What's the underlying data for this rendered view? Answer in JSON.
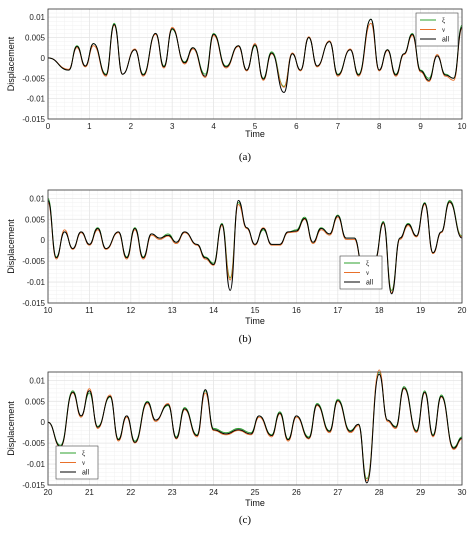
{
  "colors": {
    "xi": "#2ca02c",
    "nu": "#e8702a",
    "all": "#000000",
    "grid": "#e6e6e6",
    "axis": "#333333"
  },
  "chart_data": [
    {
      "type": "line",
      "caption_letter": "a",
      "caption": "(a)",
      "xlabel": "Time",
      "ylabel": "Displacement",
      "xlim": [
        0,
        10
      ],
      "ylim": [
        -0.015,
        0.012
      ],
      "xticks": [
        "0",
        "1",
        "2",
        "3",
        "4",
        "5",
        "6",
        "7",
        "8",
        "9",
        "10"
      ],
      "yticks": [
        "0.01",
        "0.005",
        "0",
        "-0.005",
        "-0.01",
        "-0.015"
      ],
      "legend_position": "top-right",
      "grid": true,
      "series": [
        {
          "name": "ξ",
          "color": "#2ca02c",
          "x": [
            0,
            0.5,
            0.7,
            0.9,
            1.1,
            1.4,
            1.6,
            1.8,
            2.1,
            2.3,
            2.6,
            2.8,
            3.0,
            3.3,
            3.5,
            3.8,
            4.0,
            4.3,
            4.6,
            4.8,
            5.0,
            5.2,
            5.4,
            5.7,
            5.9,
            6.1,
            6.3,
            6.5,
            6.8,
            7.0,
            7.3,
            7.5,
            7.8,
            8.0,
            8.2,
            8.4,
            8.6,
            8.8,
            9.0,
            9.2,
            9.4,
            9.6,
            9.8,
            10
          ],
          "y": [
            0,
            -0.003,
            0.003,
            -0.002,
            0.0035,
            -0.004,
            0.0085,
            -0.004,
            0.002,
            -0.004,
            0.006,
            -0.002,
            0.007,
            -0.001,
            0.0025,
            -0.004,
            0.006,
            -0.002,
            0.003,
            -0.003,
            0.003,
            -0.005,
            0.0015,
            -0.007,
            0.001,
            -0.003,
            0.005,
            -0.002,
            0.004,
            -0.004,
            0.002,
            -0.004,
            0.0095,
            -0.003,
            0.002,
            -0.004,
            0.001,
            0.006,
            -0.003,
            -0.005,
            0.0005,
            -0.004,
            -0.005,
            0.008
          ]
        },
        {
          "name": "ν",
          "color": "#e8702a",
          "x": [
            0,
            0.5,
            0.7,
            0.9,
            1.1,
            1.4,
            1.6,
            1.8,
            2.1,
            2.3,
            2.6,
            2.8,
            3.0,
            3.3,
            3.5,
            3.8,
            4.0,
            4.3,
            4.6,
            4.8,
            5.0,
            5.2,
            5.4,
            5.7,
            5.9,
            6.1,
            6.3,
            6.5,
            6.8,
            7.0,
            7.3,
            7.5,
            7.8,
            8.0,
            8.2,
            8.4,
            8.6,
            8.8,
            9.0,
            9.2,
            9.4,
            9.6,
            9.8,
            10
          ],
          "y": [
            0,
            -0.0028,
            0.0025,
            -0.0022,
            0.003,
            -0.0045,
            0.008,
            -0.004,
            0.0022,
            -0.0045,
            0.0058,
            -0.0025,
            0.0075,
            -0.0015,
            0.0022,
            -0.0048,
            0.0055,
            -0.0025,
            0.0028,
            -0.0032,
            0.0035,
            -0.0055,
            0.001,
            -0.0072,
            0.0012,
            -0.0032,
            0.0052,
            -0.0022,
            0.0042,
            -0.0045,
            0.0022,
            -0.0045,
            0.0085,
            -0.0032,
            0.0018,
            -0.0045,
            0.0008,
            0.0055,
            -0.0035,
            -0.0058,
            0.0008,
            -0.0045,
            -0.0055,
            0.0072
          ]
        },
        {
          "name": "all",
          "color": "#000000",
          "x": [
            0,
            0.5,
            0.7,
            0.9,
            1.1,
            1.4,
            1.6,
            1.8,
            2.1,
            2.3,
            2.6,
            2.8,
            3.0,
            3.3,
            3.5,
            3.8,
            4.0,
            4.3,
            4.6,
            4.8,
            5.0,
            5.2,
            5.4,
            5.7,
            5.9,
            6.1,
            6.3,
            6.5,
            6.8,
            7.0,
            7.3,
            7.5,
            7.8,
            8.0,
            8.2,
            8.4,
            8.6,
            8.8,
            9.0,
            9.2,
            9.4,
            9.6,
            9.8,
            10
          ],
          "y": [
            0,
            -0.003,
            0.0028,
            -0.002,
            0.0035,
            -0.0042,
            0.0082,
            -0.004,
            0.002,
            -0.0042,
            0.006,
            -0.0022,
            0.0072,
            -0.0012,
            0.0025,
            -0.0045,
            0.0058,
            -0.0022,
            0.003,
            -0.003,
            0.0032,
            -0.0052,
            0.0012,
            -0.0085,
            0.001,
            -0.003,
            0.005,
            -0.002,
            0.004,
            -0.0042,
            0.002,
            -0.0042,
            0.0095,
            -0.003,
            0.002,
            -0.0042,
            0.001,
            0.0058,
            -0.0032,
            -0.0055,
            0.0005,
            -0.0042,
            -0.005,
            0.0075
          ]
        }
      ]
    },
    {
      "type": "line",
      "caption_letter": "b",
      "caption": "(b)",
      "xlabel": "Time",
      "ylabel": "Displacement",
      "xlim": [
        10,
        20
      ],
      "ylim": [
        -0.015,
        0.012
      ],
      "xticks": [
        "10",
        "11",
        "12",
        "13",
        "14",
        "15",
        "16",
        "17",
        "18",
        "19",
        "20"
      ],
      "yticks": [
        "0.01",
        "0.005",
        "0",
        "-0.005",
        "-0.01",
        "-0.015"
      ],
      "legend_position": "lower-right",
      "grid": true,
      "series": [
        {
          "name": "ξ",
          "color": "#2ca02c",
          "x": [
            10,
            10.2,
            10.4,
            10.6,
            10.8,
            11.0,
            11.2,
            11.4,
            11.7,
            11.9,
            12.1,
            12.3,
            12.5,
            12.7,
            12.9,
            13.1,
            13.3,
            13.6,
            13.8,
            14.0,
            14.2,
            14.4,
            14.6,
            14.8,
            15.0,
            15.2,
            15.4,
            15.6,
            15.8,
            16.0,
            16.2,
            16.4,
            16.6,
            16.8,
            17.0,
            17.2,
            17.4,
            17.6,
            17.9,
            18.1,
            18.3,
            18.5,
            18.7,
            18.9,
            19.1,
            19.3,
            19.5,
            19.7,
            20
          ],
          "y": [
            0.01,
            -0.004,
            0.002,
            -0.002,
            0.002,
            -0.001,
            0.003,
            -0.002,
            0.002,
            -0.004,
            0.003,
            -0.004,
            0.0015,
            0.0005,
            0.0015,
            -0.0005,
            0.002,
            -0.001,
            -0.004,
            -0.0055,
            0.004,
            -0.009,
            0.009,
            0.003,
            -0.001,
            0.0025,
            -0.001,
            -0.001,
            0.002,
            0.0025,
            0.0055,
            -0.0005,
            0.003,
            0.0015,
            0.006,
            0.0005,
            0.0005,
            -0.006,
            -0.0045,
            0.0045,
            -0.012,
            0.0005,
            0.004,
            0.001,
            0.009,
            -0.003,
            0.002,
            0.0095,
            0.001
          ]
        },
        {
          "name": "ν",
          "color": "#e8702a",
          "x": [
            10,
            10.2,
            10.4,
            10.6,
            10.8,
            11.0,
            11.2,
            11.4,
            11.7,
            11.9,
            12.1,
            12.3,
            12.5,
            12.7,
            12.9,
            13.1,
            13.3,
            13.6,
            13.8,
            14.0,
            14.2,
            14.4,
            14.6,
            14.8,
            15.0,
            15.2,
            15.4,
            15.6,
            15.8,
            16.0,
            16.2,
            16.4,
            16.6,
            16.8,
            17.0,
            17.2,
            17.4,
            17.6,
            17.9,
            18.1,
            18.3,
            18.5,
            18.7,
            18.9,
            19.1,
            19.3,
            19.5,
            19.7,
            20
          ],
          "y": [
            0.009,
            -0.0045,
            0.0025,
            -0.0022,
            0.0018,
            -0.0012,
            0.0025,
            -0.0022,
            0.0018,
            -0.0045,
            0.0025,
            -0.0045,
            0.0012,
            0.0002,
            0.001,
            -0.0008,
            0.0018,
            -0.0012,
            -0.0045,
            -0.006,
            0.0035,
            -0.0095,
            0.0085,
            0.0028,
            -0.0012,
            0.003,
            -0.0012,
            -0.0012,
            0.0018,
            0.002,
            0.005,
            -0.0008,
            0.0025,
            0.0012,
            0.0055,
            0.0002,
            0.0002,
            -0.0062,
            -0.0048,
            0.004,
            -0.0125,
            0.0002,
            0.0035,
            0.0008,
            0.0085,
            -0.0032,
            0.0018,
            0.009,
            0.0008
          ]
        },
        {
          "name": "all",
          "color": "#000000",
          "x": [
            10,
            10.2,
            10.4,
            10.6,
            10.8,
            11.0,
            11.2,
            11.4,
            11.7,
            11.9,
            12.1,
            12.3,
            12.5,
            12.7,
            12.9,
            13.1,
            13.3,
            13.6,
            13.8,
            14.0,
            14.2,
            14.4,
            14.6,
            14.8,
            15.0,
            15.2,
            15.4,
            15.6,
            15.8,
            16.0,
            16.2,
            16.4,
            16.6,
            16.8,
            17.0,
            17.2,
            17.4,
            17.6,
            17.9,
            18.1,
            18.3,
            18.5,
            18.7,
            18.9,
            19.1,
            19.3,
            19.5,
            19.7,
            20
          ],
          "y": [
            0.0095,
            -0.0042,
            0.002,
            -0.002,
            0.002,
            -0.001,
            0.0028,
            -0.002,
            0.002,
            -0.0042,
            0.0028,
            -0.0042,
            0.0015,
            0.0005,
            0.0012,
            -0.0005,
            0.002,
            -0.001,
            -0.0042,
            -0.0058,
            0.0038,
            -0.012,
            0.0095,
            0.003,
            -0.001,
            0.0028,
            -0.001,
            -0.001,
            0.002,
            0.0022,
            0.0052,
            -0.0005,
            0.0028,
            0.0015,
            0.0058,
            0.0005,
            0.0005,
            -0.006,
            -0.0045,
            0.0042,
            -0.0128,
            0.0005,
            0.0038,
            0.001,
            0.0088,
            -0.003,
            0.002,
            0.0092,
            0.0005
          ]
        }
      ]
    },
    {
      "type": "line",
      "caption_letter": "c",
      "caption": "(c)",
      "xlabel": "Time",
      "ylabel": "Displacement",
      "xlim": [
        20,
        30
      ],
      "ylim": [
        -0.015,
        0.012
      ],
      "xticks": [
        "20",
        "21",
        "22",
        "23",
        "24",
        "25",
        "26",
        "27",
        "28",
        "29",
        "30"
      ],
      "yticks": [
        "0.01",
        "0.005",
        "0",
        "-0.005",
        "-0.01",
        "-0.015"
      ],
      "legend_position": "lower-left",
      "grid": true,
      "series": [
        {
          "name": "ξ",
          "color": "#2ca02c",
          "x": [
            20,
            20.3,
            20.6,
            20.8,
            21.0,
            21.2,
            21.5,
            21.7,
            21.9,
            22.1,
            22.4,
            22.6,
            22.9,
            23.1,
            23.3,
            23.6,
            23.8,
            24.0,
            24.3,
            24.6,
            24.9,
            25.1,
            25.4,
            25.6,
            25.8,
            26.0,
            26.3,
            26.5,
            26.8,
            27.0,
            27.3,
            27.5,
            27.7,
            28.0,
            28.2,
            28.4,
            28.6,
            28.9,
            29.1,
            29.3,
            29.5,
            29.8,
            30
          ],
          "y": [
            0,
            -0.0055,
            0.0075,
            0.0015,
            0.007,
            -0.001,
            0.006,
            -0.004,
            0.0015,
            -0.0045,
            0.005,
            0.0005,
            0.004,
            -0.0035,
            0.0035,
            -0.003,
            0.0075,
            -0.0015,
            -0.0025,
            -0.0015,
            -0.0025,
            0.0015,
            -0.003,
            0.0025,
            -0.004,
            0.0015,
            -0.0035,
            0.0045,
            -0.002,
            0.0055,
            -0.002,
            -0.0005,
            -0.0135,
            0.012,
            0.0005,
            -0.001,
            0.0085,
            -0.002,
            0.0075,
            -0.003,
            0.0065,
            -0.006,
            -0.0035
          ]
        },
        {
          "name": "ν",
          "color": "#e8702a",
          "x": [
            20,
            20.3,
            20.6,
            20.8,
            21.0,
            21.2,
            21.5,
            21.7,
            21.9,
            22.1,
            22.4,
            22.6,
            22.9,
            23.1,
            23.3,
            23.6,
            23.8,
            24.0,
            24.3,
            24.6,
            24.9,
            25.1,
            25.4,
            25.6,
            25.8,
            26.0,
            26.3,
            26.5,
            26.8,
            27.0,
            27.3,
            27.5,
            27.7,
            28.0,
            28.2,
            28.4,
            28.6,
            28.9,
            29.1,
            29.3,
            29.5,
            29.8,
            30
          ],
          "y": [
            0,
            -0.006,
            0.007,
            0.0012,
            0.008,
            -0.0015,
            0.0065,
            -0.0045,
            0.0012,
            -0.005,
            0.0045,
            0.0002,
            0.0045,
            -0.004,
            0.003,
            -0.0035,
            0.007,
            -0.002,
            -0.003,
            -0.002,
            -0.003,
            0.0012,
            -0.0035,
            0.002,
            -0.0045,
            0.0012,
            -0.004,
            0.004,
            -0.0025,
            0.005,
            -0.0025,
            -0.0008,
            -0.014,
            0.0125,
            0.0002,
            -0.0015,
            0.008,
            -0.0025,
            0.007,
            -0.0035,
            0.006,
            -0.0065,
            -0.004
          ]
        },
        {
          "name": "all",
          "color": "#000000",
          "x": [
            20,
            20.3,
            20.6,
            20.8,
            21.0,
            21.2,
            21.5,
            21.7,
            21.9,
            22.1,
            22.4,
            22.6,
            22.9,
            23.1,
            23.3,
            23.6,
            23.8,
            24.0,
            24.3,
            24.6,
            24.9,
            25.1,
            25.4,
            25.6,
            25.8,
            26.0,
            26.3,
            26.5,
            26.8,
            27.0,
            27.3,
            27.5,
            27.7,
            28.0,
            28.2,
            28.4,
            28.6,
            28.9,
            29.1,
            29.3,
            29.5,
            29.8,
            30
          ],
          "y": [
            0,
            -0.0058,
            0.0072,
            0.0015,
            0.0075,
            -0.0012,
            0.0062,
            -0.0042,
            0.0015,
            -0.0048,
            0.0048,
            0.0005,
            0.0042,
            -0.0038,
            0.0032,
            -0.0032,
            0.0078,
            -0.0018,
            -0.0028,
            -0.0018,
            -0.0028,
            0.0015,
            -0.0032,
            0.0022,
            -0.0042,
            0.0015,
            -0.0038,
            0.0042,
            -0.0022,
            0.0052,
            -0.0022,
            -0.0005,
            -0.0145,
            0.0115,
            0.0005,
            -0.0012,
            0.0082,
            -0.0022,
            0.0072,
            -0.0032,
            0.0062,
            -0.0062,
            -0.0038
          ]
        }
      ]
    }
  ]
}
